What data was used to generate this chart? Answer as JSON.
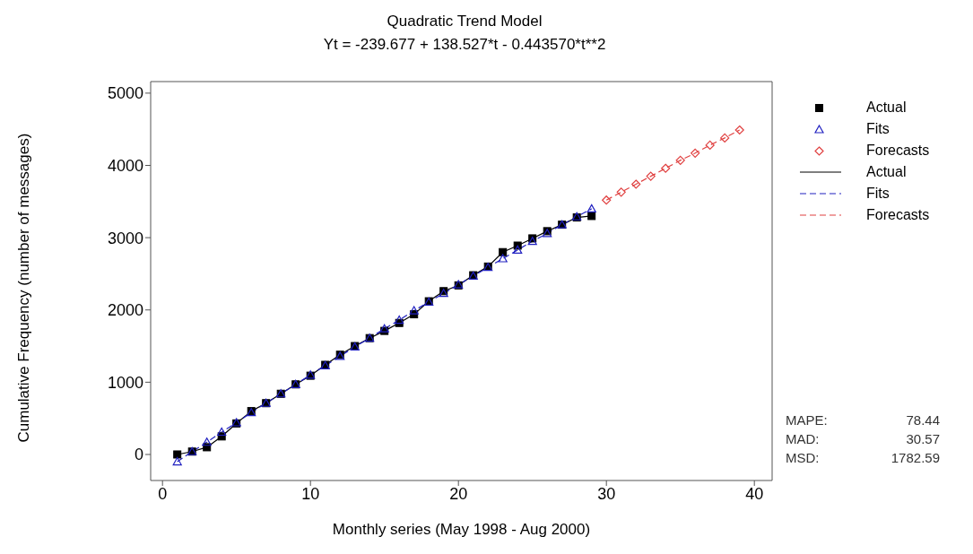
{
  "chart_data": {
    "type": "line",
    "title": "Quadratic Trend Model",
    "subtitle": "Yt = -239.677 + 138.527*t  - 0.443570*t**2",
    "xlabel": "Monthly series (May 1998 - Aug 2000)",
    "ylabel": "Cumulative Frequency (number of messages)",
    "xlim": [
      -0.8,
      41.2
    ],
    "xticks": [
      0,
      10,
      20,
      30,
      40
    ],
    "ylim": [
      -360,
      5160
    ],
    "yticks": [
      0,
      1000,
      2000,
      3000,
      4000,
      5000
    ],
    "legend": "right",
    "series": [
      {
        "name": "Actual",
        "color": "#000000",
        "marker": "square",
        "line_style": "solid",
        "x": [
          1,
          2,
          3,
          4,
          5,
          6,
          7,
          8,
          9,
          10,
          11,
          12,
          13,
          14,
          15,
          16,
          17,
          18,
          19,
          20,
          21,
          22,
          23,
          24,
          25,
          26,
          27,
          28,
          29
        ],
        "values": [
          0,
          40,
          100,
          250,
          430,
          600,
          710,
          840,
          970,
          1090,
          1240,
          1380,
          1500,
          1610,
          1710,
          1820,
          1940,
          2120,
          2260,
          2340,
          2480,
          2600,
          2800,
          2890,
          2990,
          3090,
          3180,
          3280,
          3300
        ]
      },
      {
        "name": "Fits",
        "color": "#2020c0",
        "marker": "triangle",
        "line_style": "dashed",
        "x": [
          1,
          2,
          3,
          4,
          5,
          6,
          7,
          8,
          9,
          10,
          11,
          12,
          13,
          14,
          15,
          16,
          17,
          18,
          19,
          20,
          21,
          22,
          23,
          24,
          25,
          26,
          27,
          28,
          29
        ],
        "values": [
          -100,
          40,
          170,
          310,
          440,
          580,
          710,
          840,
          970,
          1100,
          1230,
          1360,
          1490,
          1610,
          1740,
          1860,
          1990,
          2110,
          2230,
          2350,
          2470,
          2590,
          2710,
          2830,
          2950,
          3060,
          3180,
          3290,
          3400
        ]
      },
      {
        "name": "Forecasts",
        "color": "#e04040",
        "marker": "diamond",
        "line_style": "dashed",
        "x": [
          30,
          31,
          32,
          33,
          34,
          35,
          36,
          37,
          38,
          39
        ],
        "values": [
          3520,
          3630,
          3740,
          3850,
          3960,
          4070,
          4170,
          4280,
          4380,
          4490
        ]
      }
    ],
    "annotations": [
      "MAPE: 78.44",
      "MAD: 30.57",
      "MSD: 1782.59"
    ]
  }
}
